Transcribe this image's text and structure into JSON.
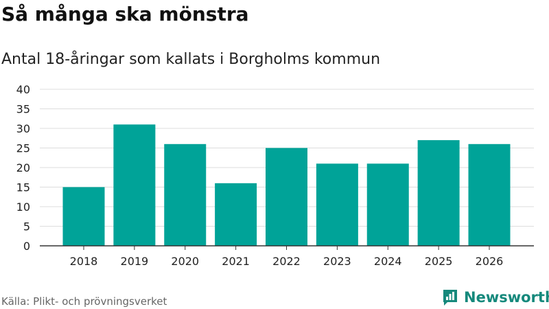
{
  "header": {
    "title": "Så många ska mönstra",
    "subtitle": "Antal 18-åringar som kallats i Borgholms kommun"
  },
  "footer": {
    "source": "Källa: Plikt- och prövningsverket",
    "brand": "Newsworthy",
    "brand_icon": "newsworthy-logo-icon"
  },
  "colors": {
    "bar": "#00a398",
    "grid": "#dddddd",
    "axis": "#333333",
    "brand": "#16897c"
  },
  "chart_data": {
    "type": "bar",
    "title": "Så många ska mönstra",
    "subtitle": "Antal 18-åringar som kallats i Borgholms kommun",
    "categories": [
      "2018",
      "2019",
      "2020",
      "2021",
      "2022",
      "2023",
      "2024",
      "2025",
      "2026"
    ],
    "values": [
      15,
      31,
      26,
      16,
      25,
      21,
      21,
      27,
      26
    ],
    "ylim": [
      0,
      40
    ],
    "yticks": [
      0,
      5,
      10,
      15,
      20,
      25,
      30,
      35,
      40
    ],
    "xlabel": "",
    "ylabel": "",
    "grid": true,
    "legend": "none"
  }
}
